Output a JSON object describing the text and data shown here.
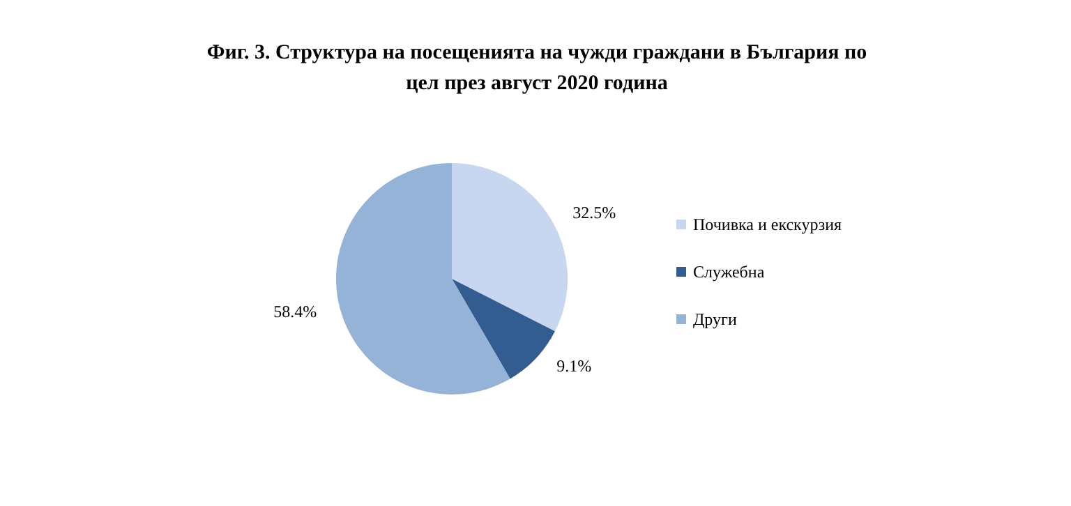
{
  "chart_data": {
    "type": "pie",
    "title": "Фиг. 3. Структура на посещенията на чужди граждани в България по\nцел през август 2020 година",
    "categories": [
      "Почивка и екскурзия",
      "Служебна",
      "Други"
    ],
    "values": [
      32.5,
      9.1,
      58.4
    ],
    "colors": [
      "#c6d7ef",
      "#335d91",
      "#95b3d7"
    ],
    "value_labels": [
      "32.5%",
      "9.1%",
      "58.4%"
    ],
    "legend": "right"
  }
}
